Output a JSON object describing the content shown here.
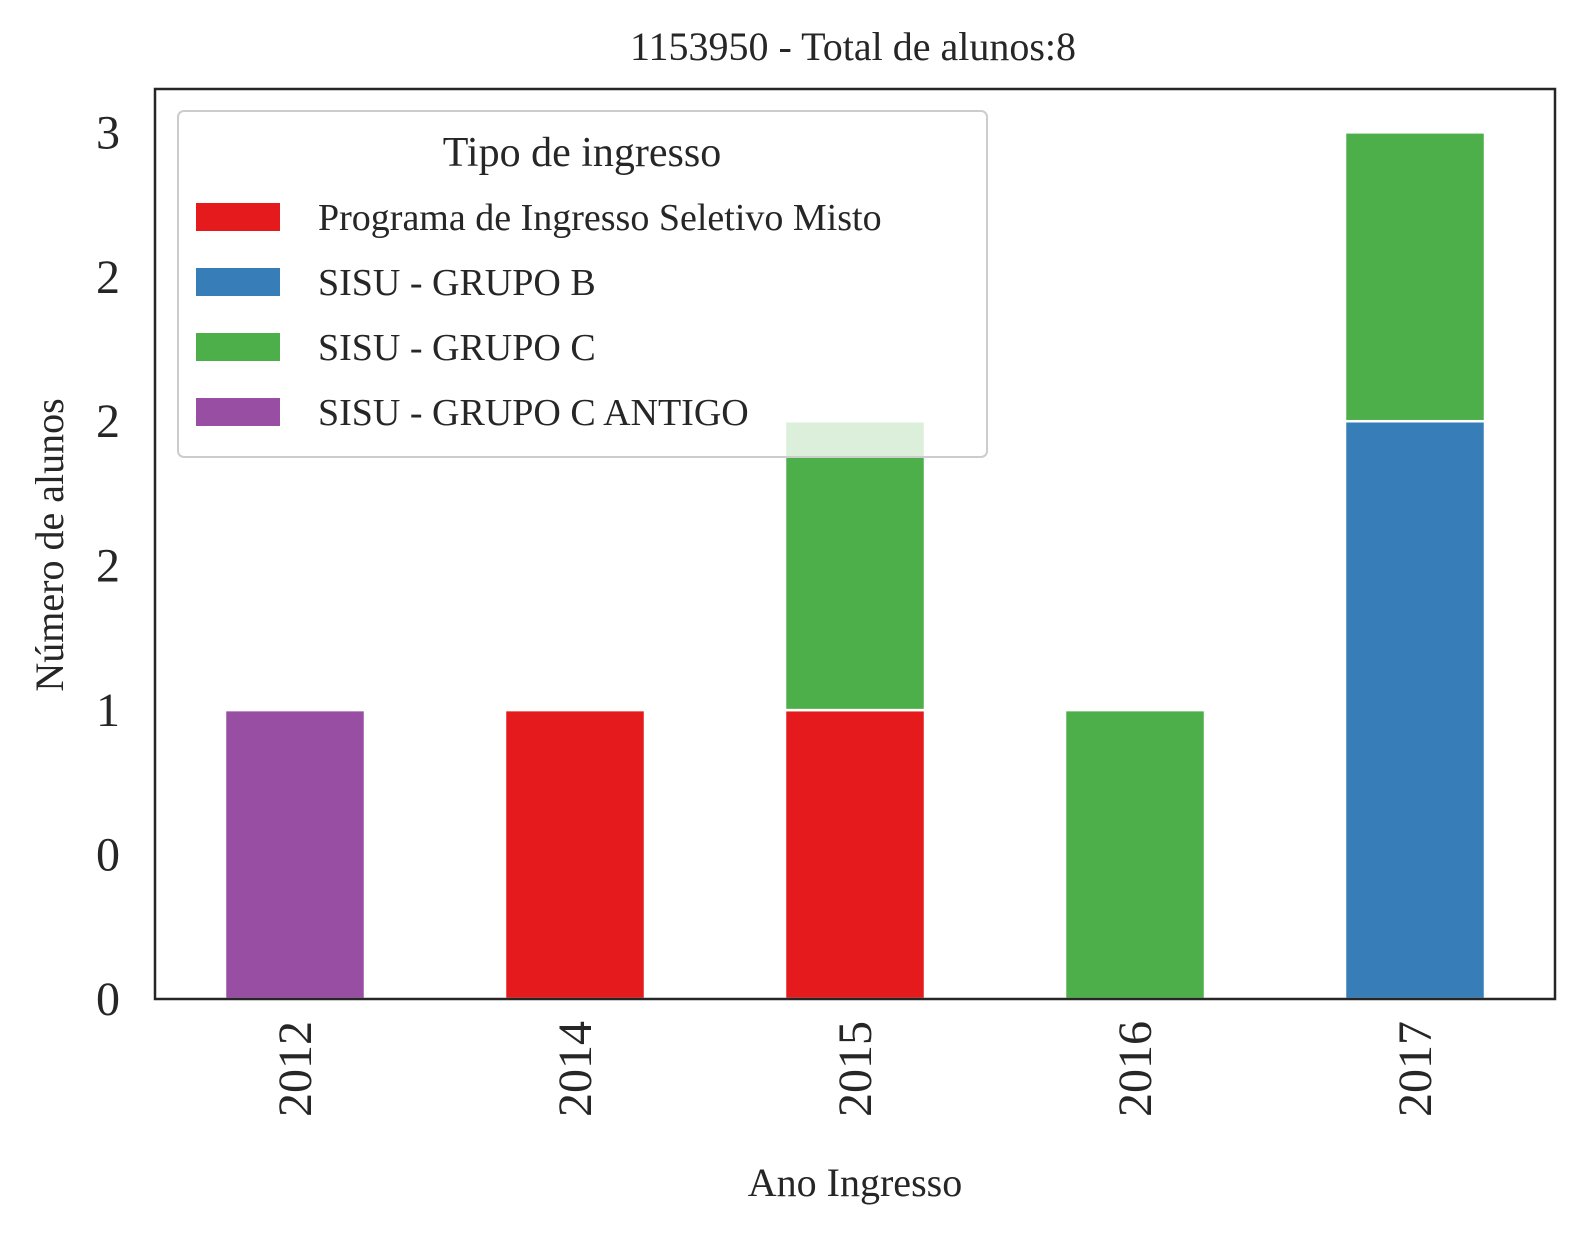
{
  "chart_data": {
    "type": "bar",
    "stacked": true,
    "title": "1153950 - Total de alunos:8",
    "xlabel": "Ano Ingresso",
    "ylabel": "Número de alunos",
    "categories": [
      "2012",
      "2014",
      "2015",
      "2016",
      "2017"
    ],
    "ylim": [
      0,
      3.15
    ],
    "yticks": [
      {
        "value": 0,
        "label": "0"
      },
      {
        "value": 0.5,
        "label": "0"
      },
      {
        "value": 1,
        "label": "1"
      },
      {
        "value": 1.5,
        "label": "2"
      },
      {
        "value": 2,
        "label": "2"
      },
      {
        "value": 2.5,
        "label": "2"
      },
      {
        "value": 3,
        "label": "3"
      }
    ],
    "legend": {
      "title": "Tipo de ingresso",
      "position": "upper left"
    },
    "grid": false,
    "series": [
      {
        "name": "Programa de Ingresso Seletivo Misto",
        "color": "#e41a1c",
        "values": [
          0,
          1,
          1,
          0,
          0
        ]
      },
      {
        "name": "SISU - GRUPO B",
        "color": "#377eb8",
        "values": [
          0,
          0,
          0,
          0,
          2
        ]
      },
      {
        "name": "SISU - GRUPO C",
        "color": "#4daf4a",
        "values": [
          0,
          0,
          1,
          1,
          1
        ]
      },
      {
        "name": "SISU - GRUPO C ANTIGO",
        "color": "#984ea3",
        "values": [
          1,
          0,
          0,
          0,
          0
        ]
      }
    ]
  }
}
